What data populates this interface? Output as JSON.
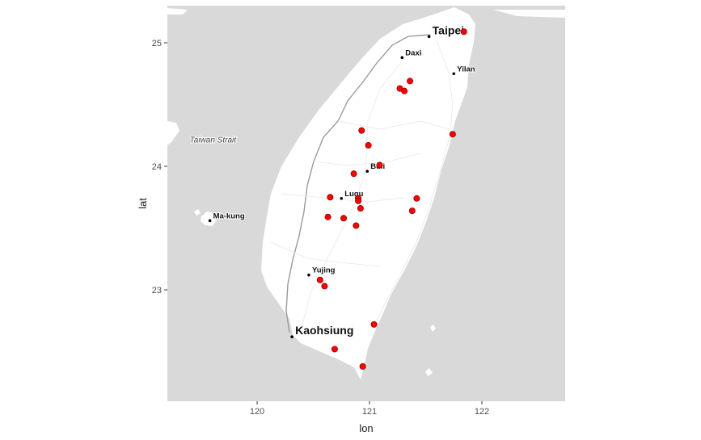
{
  "chart_data": {
    "type": "scatter",
    "title": "",
    "xlabel": "lon",
    "ylabel": "lat",
    "xlim": [
      119.2,
      122.7
    ],
    "ylim": [
      22.1,
      25.3
    ],
    "x_ticks": [
      120,
      121,
      122
    ],
    "y_ticks": [
      23,
      24,
      25
    ],
    "background_color": "#d9d9d9",
    "land_color": "#ffffff",
    "point_color": "#ff0000",
    "point_outline_color": "#8b0000",
    "sea_labels": [
      {
        "text": "Taiwan Strait",
        "lon": 119.4,
        "lat": 24.22
      }
    ],
    "cities": [
      {
        "name": "Taipei",
        "lon": 121.53,
        "lat": 25.05,
        "size": "large"
      },
      {
        "name": "Daxi",
        "lon": 121.29,
        "lat": 24.88,
        "size": "small"
      },
      {
        "name": "Yilan",
        "lon": 121.75,
        "lat": 24.75,
        "size": "small"
      },
      {
        "name": "Buli",
        "lon": 120.98,
        "lat": 23.96,
        "size": "small"
      },
      {
        "name": "Lugu",
        "lon": 120.75,
        "lat": 23.74,
        "size": "small"
      },
      {
        "name": "Ma-kung",
        "lon": 119.58,
        "lat": 23.56,
        "size": "small"
      },
      {
        "name": "Yujing",
        "lon": 120.46,
        "lat": 23.12,
        "size": "small"
      },
      {
        "name": "Kaohsiung",
        "lon": 120.31,
        "lat": 22.62,
        "size": "large"
      }
    ],
    "series": [
      {
        "x": [
          121.84,
          121.36,
          121.27,
          121.31,
          121.74,
          120.93,
          120.99,
          121.09,
          120.86,
          120.9,
          120.9,
          120.65,
          120.92,
          121.42,
          121.38,
          120.63,
          120.77,
          120.88,
          120.56,
          120.6,
          121.04,
          120.69,
          120.94
        ],
        "y": [
          25.09,
          24.69,
          24.63,
          24.61,
          24.26,
          24.29,
          24.17,
          24.01,
          23.94,
          23.74,
          23.72,
          23.75,
          23.66,
          23.74,
          23.64,
          23.59,
          23.58,
          23.52,
          23.08,
          23.03,
          22.72,
          22.52,
          22.38
        ]
      }
    ]
  }
}
